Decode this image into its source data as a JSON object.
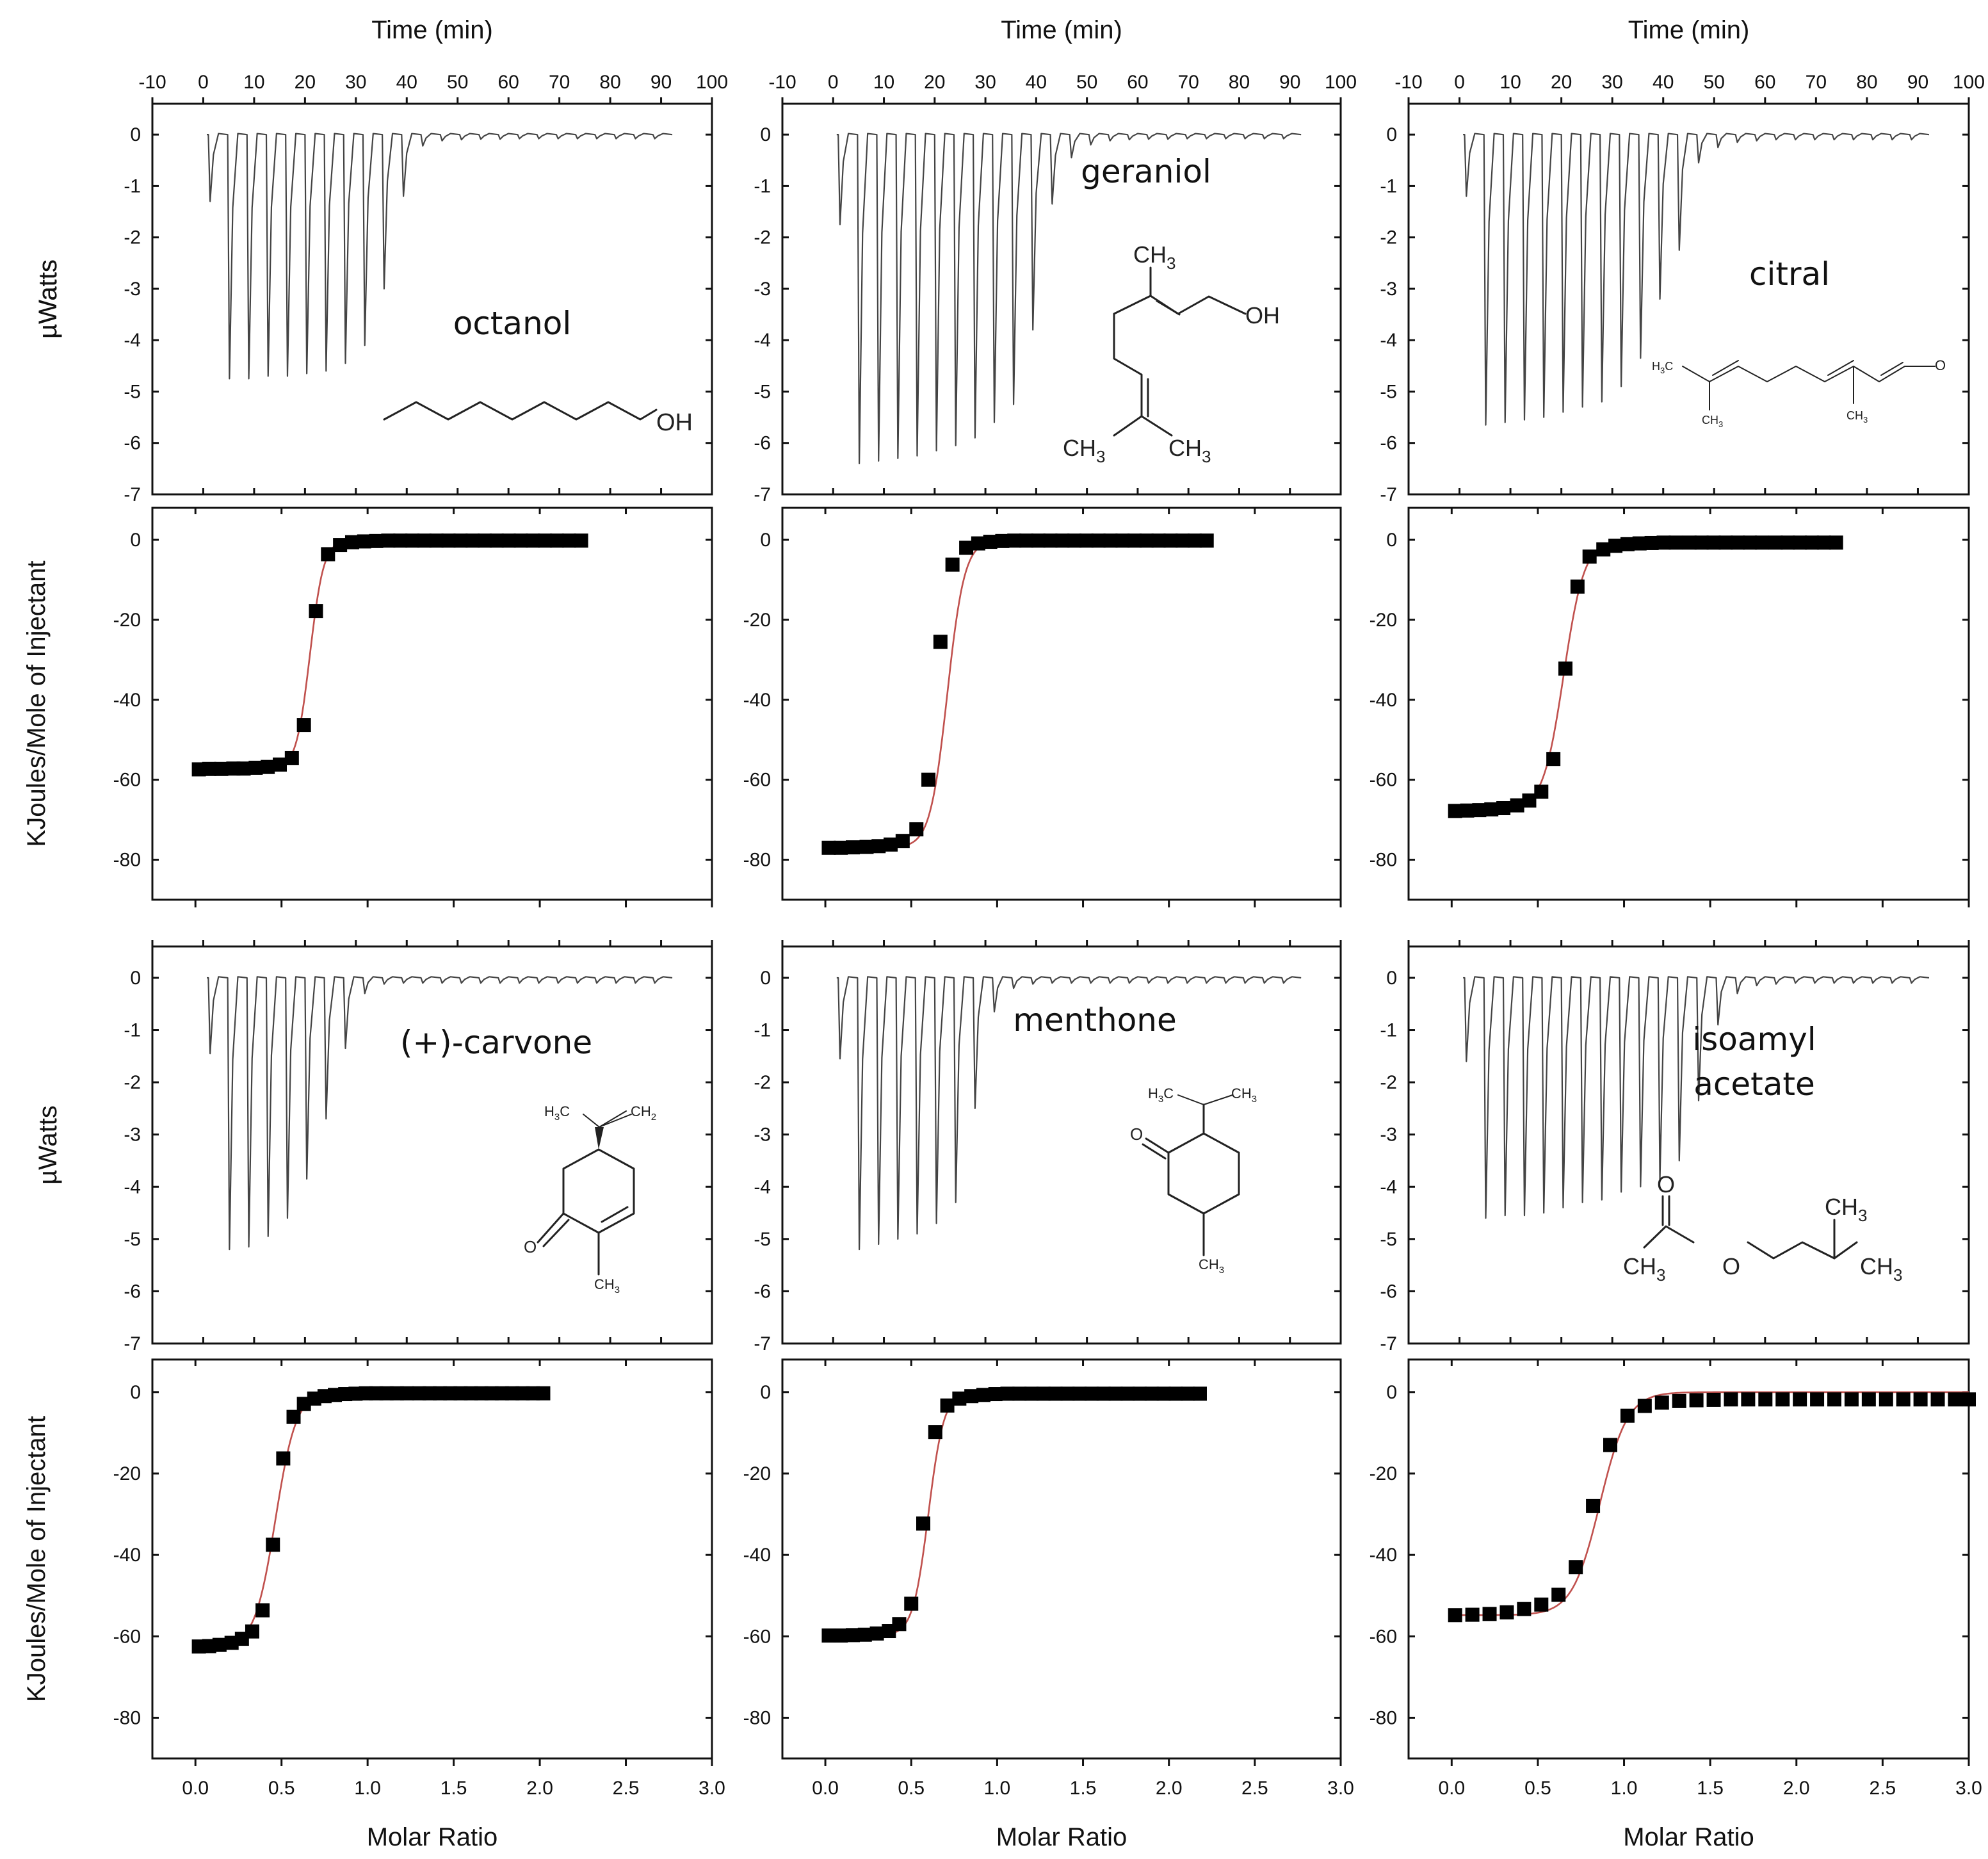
{
  "chart_data": [
    {
      "type": "itc-titration",
      "compound": "octanol",
      "thermogram": {
        "title": "Time (min)",
        "ylabel": "µWatts",
        "xlim": [
          -10,
          100
        ],
        "ylim": [
          -7,
          0.6
        ],
        "xticks": [
          -10,
          0,
          10,
          20,
          30,
          40,
          50,
          60,
          70,
          80,
          90,
          100
        ],
        "yticks": [
          0,
          -1,
          -2,
          -3,
          -4,
          -5,
          -6,
          -7
        ],
        "injection_interval_min": 3.8,
        "first_injection_min": 1.0,
        "peak_minima": [
          -1.3,
          -4.75,
          -4.75,
          -4.7,
          -4.7,
          -4.65,
          -4.6,
          -4.45,
          -4.1,
          -3.0,
          -1.2,
          -0.22,
          -0.12,
          -0.1,
          -0.09,
          -0.09,
          -0.08,
          -0.08,
          -0.08,
          -0.08,
          -0.08,
          -0.08,
          -0.08,
          -0.08
        ]
      },
      "isotherm": {
        "xlabel": "Molar Ratio",
        "ylabel": "KJoules/Mole of Injectant",
        "xlim": [
          -0.25,
          3.0
        ],
        "ylim": [
          -90,
          8
        ],
        "xticks": [
          0.0,
          0.5,
          1.0,
          1.5,
          2.0,
          2.5,
          3.0
        ],
        "yticks": [
          0,
          -20,
          -40,
          -60,
          -80
        ],
        "x": [
          0.02,
          0.08,
          0.15,
          0.22,
          0.28,
          0.35,
          0.42,
          0.49,
          0.56,
          0.63,
          0.7,
          0.77,
          0.84,
          0.91,
          0.98,
          1.05,
          1.12,
          1.19,
          1.26,
          1.33,
          1.4,
          1.47,
          1.54,
          1.61,
          1.68,
          1.75,
          1.82,
          1.89,
          1.96,
          2.03,
          2.1,
          2.17,
          2.24
        ],
        "y": [
          -57.4,
          -57.3,
          -57.3,
          -57.2,
          -57.2,
          -57.0,
          -56.8,
          -56.2,
          -54.6,
          -46.3,
          -17.8,
          -3.6,
          -1.3,
          -0.6,
          -0.4,
          -0.3,
          -0.2,
          -0.2,
          -0.2,
          -0.2,
          -0.2,
          -0.2,
          -0.2,
          -0.2,
          -0.2,
          -0.2,
          -0.2,
          -0.2,
          -0.2,
          -0.2,
          -0.2,
          -0.2,
          -0.2
        ],
        "fit": {
          "dh": -57.5,
          "x0": 0.665,
          "w": 0.04
        }
      }
    },
    {
      "type": "itc-titration",
      "compound": "geraniol",
      "thermogram": {
        "title": "Time (min)",
        "ylabel": "µWatts",
        "xlim": [
          -10,
          100
        ],
        "ylim": [
          -7,
          0.6
        ],
        "xticks": [
          -10,
          0,
          10,
          20,
          30,
          40,
          50,
          60,
          70,
          80,
          90,
          100
        ],
        "yticks": [
          0,
          -1,
          -2,
          -3,
          -4,
          -5,
          -6,
          -7
        ],
        "injection_interval_min": 3.8,
        "first_injection_min": 1.0,
        "peak_minima": [
          -1.75,
          -6.4,
          -6.35,
          -6.3,
          -6.25,
          -6.15,
          -6.05,
          -5.9,
          -5.6,
          -5.25,
          -3.8,
          -1.35,
          -0.45,
          -0.2,
          -0.12,
          -0.1,
          -0.09,
          -0.09,
          -0.08,
          -0.08,
          -0.08,
          -0.08,
          -0.08,
          -0.08
        ]
      },
      "isotherm": {
        "xlabel": "Molar Ratio",
        "ylabel": "",
        "xlim": [
          -0.25,
          3.0
        ],
        "ylim": [
          -90,
          8
        ],
        "xticks": [
          0.0,
          0.5,
          1.0,
          1.5,
          2.0,
          2.5,
          3.0
        ],
        "yticks": [
          0,
          -20,
          -40,
          -60,
          -80
        ],
        "x": [
          0.02,
          0.09,
          0.16,
          0.24,
          0.31,
          0.38,
          0.45,
          0.53,
          0.6,
          0.67,
          0.74,
          0.82,
          0.89,
          0.96,
          1.03,
          1.1,
          1.17,
          1.24,
          1.31,
          1.38,
          1.45,
          1.52,
          1.59,
          1.66,
          1.73,
          1.8,
          1.87,
          1.94,
          2.01,
          2.08,
          2.15,
          2.22
        ],
        "y": [
          -77.0,
          -77.0,
          -76.9,
          -76.8,
          -76.6,
          -76.2,
          -75.3,
          -72.4,
          -60.0,
          -25.5,
          -6.2,
          -2.0,
          -0.9,
          -0.5,
          -0.3,
          -0.2,
          -0.2,
          -0.2,
          -0.2,
          -0.2,
          -0.2,
          -0.2,
          -0.2,
          -0.2,
          -0.2,
          -0.2,
          -0.2,
          -0.2,
          -0.2,
          -0.2,
          -0.2,
          -0.2
        ],
        "fit": {
          "dh": -77.0,
          "x0": 0.71,
          "w": 0.05
        }
      }
    },
    {
      "type": "itc-titration",
      "compound": "citral",
      "thermogram": {
        "title": "Time (min)",
        "ylabel": "",
        "xlim": [
          -10,
          100
        ],
        "ylim": [
          -7,
          0.6
        ],
        "xticks": [
          -10,
          0,
          10,
          20,
          30,
          40,
          50,
          60,
          70,
          80,
          90,
          100
        ],
        "yticks": [
          0,
          -1,
          -2,
          -3,
          -4,
          -5,
          -6,
          -7
        ],
        "injection_interval_min": 3.8,
        "first_injection_min": 1.0,
        "peak_minima": [
          -1.2,
          -5.65,
          -5.6,
          -5.55,
          -5.5,
          -5.4,
          -5.3,
          -5.2,
          -4.9,
          -4.35,
          -3.2,
          -2.25,
          -0.55,
          -0.25,
          -0.15,
          -0.12,
          -0.1,
          -0.1,
          -0.1,
          -0.1,
          -0.1,
          -0.1,
          -0.1,
          -0.1
        ]
      },
      "isotherm": {
        "xlabel": "Molar Ratio",
        "ylabel": "",
        "xlim": [
          -0.25,
          3.0
        ],
        "ylim": [
          -90,
          8
        ],
        "xticks": [
          0.0,
          0.5,
          1.0,
          1.5,
          2.0,
          2.5,
          3.0
        ],
        "yticks": [
          0,
          -20,
          -40,
          -60,
          -80
        ],
        "x": [
          0.02,
          0.09,
          0.16,
          0.23,
          0.3,
          0.38,
          0.45,
          0.52,
          0.59,
          0.66,
          0.73,
          0.8,
          0.88,
          0.95,
          1.02,
          1.09,
          1.16,
          1.23,
          1.3,
          1.38,
          1.45,
          1.52,
          1.59,
          1.66,
          1.73,
          1.8,
          1.88,
          1.95,
          2.02,
          2.09,
          2.16,
          2.23
        ],
        "y": [
          -67.8,
          -67.7,
          -67.6,
          -67.4,
          -67.1,
          -66.4,
          -65.2,
          -63.0,
          -54.8,
          -32.2,
          -11.7,
          -4.2,
          -2.4,
          -1.5,
          -1.1,
          -0.9,
          -0.8,
          -0.7,
          -0.7,
          -0.7,
          -0.7,
          -0.7,
          -0.7,
          -0.7,
          -0.7,
          -0.7,
          -0.7,
          -0.7,
          -0.7,
          -0.7,
          -0.7,
          -0.7
        ],
        "fit": {
          "dh": -67.5,
          "x0": 0.65,
          "w": 0.06
        }
      }
    },
    {
      "type": "itc-titration",
      "compound": "(+)-carvone",
      "thermogram": {
        "title": "",
        "ylabel": "µWatts",
        "xlim": [
          -10,
          100
        ],
        "ylim": [
          -7,
          0.6
        ],
        "xticks": [],
        "yticks": [
          0,
          -1,
          -2,
          -3,
          -4,
          -5,
          -6,
          -7
        ],
        "injection_interval_min": 3.8,
        "first_injection_min": 1.0,
        "peak_minima": [
          -1.45,
          -5.2,
          -5.15,
          -4.95,
          -4.6,
          -3.85,
          -2.7,
          -1.35,
          -0.3,
          -0.12,
          -0.1,
          -0.1,
          -0.1,
          -0.1,
          -0.1,
          -0.1,
          -0.1,
          -0.1,
          -0.1,
          -0.1,
          -0.1,
          -0.1,
          -0.1,
          -0.1
        ]
      },
      "isotherm": {
        "xlabel": "Molar Ratio",
        "ylabel": "KJoules/Mole of Injectant",
        "xlim": [
          -0.25,
          3.0
        ],
        "ylim": [
          -90,
          8
        ],
        "xticks": [
          0.0,
          0.5,
          1.0,
          1.5,
          2.0,
          2.5,
          3.0
        ],
        "yticks": [
          0,
          -20,
          -40,
          -60,
          -80
        ],
        "x": [
          0.02,
          0.08,
          0.14,
          0.21,
          0.27,
          0.33,
          0.39,
          0.45,
          0.51,
          0.57,
          0.63,
          0.69,
          0.75,
          0.81,
          0.87,
          0.93,
          0.99,
          1.05,
          1.11,
          1.17,
          1.23,
          1.3,
          1.36,
          1.42,
          1.48,
          1.54,
          1.6,
          1.66,
          1.72,
          1.78,
          1.84,
          1.9,
          1.96,
          2.02
        ],
        "y": [
          -62.5,
          -62.4,
          -62.1,
          -61.6,
          -60.6,
          -58.8,
          -53.6,
          -37.5,
          -16.3,
          -6.1,
          -2.9,
          -1.6,
          -1.0,
          -0.7,
          -0.5,
          -0.4,
          -0.3,
          -0.3,
          -0.3,
          -0.3,
          -0.3,
          -0.3,
          -0.3,
          -0.3,
          -0.3,
          -0.3,
          -0.3,
          -0.3,
          -0.3,
          -0.3,
          -0.3,
          -0.3,
          -0.3,
          -0.3
        ],
        "fit": {
          "dh": -62.5,
          "x0": 0.465,
          "w": 0.06
        }
      }
    },
    {
      "type": "itc-titration",
      "compound": "menthone",
      "thermogram": {
        "title": "",
        "ylabel": "",
        "xlim": [
          -10,
          100
        ],
        "ylim": [
          -7,
          0.6
        ],
        "xticks": [],
        "yticks": [
          0,
          -1,
          -2,
          -3,
          -4,
          -5,
          -6,
          -7
        ],
        "injection_interval_min": 3.8,
        "first_injection_min": 1.0,
        "peak_minima": [
          -1.55,
          -5.2,
          -5.1,
          -5.0,
          -4.9,
          -4.7,
          -4.3,
          -2.5,
          -0.65,
          -0.2,
          -0.12,
          -0.1,
          -0.1,
          -0.1,
          -0.1,
          -0.1,
          -0.1,
          -0.1,
          -0.1,
          -0.1,
          -0.1,
          -0.1,
          -0.1,
          -0.1
        ]
      },
      "isotherm": {
        "xlabel": "Molar Ratio",
        "ylabel": "",
        "xlim": [
          -0.25,
          3.0
        ],
        "ylim": [
          -90,
          8
        ],
        "xticks": [
          0.0,
          0.5,
          1.0,
          1.5,
          2.0,
          2.5,
          3.0
        ],
        "yticks": [
          0,
          -20,
          -40,
          -60,
          -80
        ],
        "x": [
          0.02,
          0.09,
          0.16,
          0.23,
          0.3,
          0.37,
          0.43,
          0.5,
          0.57,
          0.64,
          0.71,
          0.78,
          0.85,
          0.92,
          0.99,
          1.06,
          1.13,
          1.2,
          1.27,
          1.34,
          1.41,
          1.48,
          1.55,
          1.62,
          1.69,
          1.76,
          1.83,
          1.9,
          1.97,
          2.04,
          2.11,
          2.18
        ],
        "y": [
          -59.8,
          -59.8,
          -59.7,
          -59.6,
          -59.3,
          -58.7,
          -57.0,
          -52.0,
          -32.3,
          -9.8,
          -3.3,
          -1.6,
          -1.0,
          -0.7,
          -0.5,
          -0.4,
          -0.4,
          -0.4,
          -0.4,
          -0.4,
          -0.4,
          -0.4,
          -0.4,
          -0.4,
          -0.4,
          -0.4,
          -0.4,
          -0.4,
          -0.4,
          -0.4,
          -0.4,
          -0.4
        ],
        "fit": {
          "dh": -59.8,
          "x0": 0.6,
          "w": 0.045
        }
      }
    },
    {
      "type": "itc-titration",
      "compound": "isoamyl acetate",
      "thermogram": {
        "title": "",
        "ylabel": "",
        "xlim": [
          -10,
          100
        ],
        "ylim": [
          -7,
          0.6
        ],
        "xticks": [],
        "yticks": [
          0,
          -1,
          -2,
          -3,
          -4,
          -5,
          -6,
          -7
        ],
        "injection_interval_min": 3.8,
        "first_injection_min": 1.0,
        "peak_minima": [
          -1.6,
          -4.6,
          -4.55,
          -4.55,
          -4.5,
          -4.4,
          -4.3,
          -4.25,
          -4.1,
          -4.0,
          -3.85,
          -3.5,
          -2.35,
          -0.9,
          -0.3,
          -0.15,
          -0.12,
          -0.1,
          -0.1,
          -0.1,
          -0.1,
          -0.1,
          -0.1,
          -0.1
        ]
      },
      "isotherm": {
        "xlabel": "Molar Ratio",
        "ylabel": "",
        "xlim": [
          -0.25,
          3.0
        ],
        "ylim": [
          -90,
          8
        ],
        "xticks": [
          0.0,
          0.5,
          1.0,
          1.5,
          2.0,
          2.5,
          3.0
        ],
        "yticks": [
          0,
          -20,
          -40,
          -60,
          -80
        ],
        "x": [
          0.02,
          0.12,
          0.22,
          0.32,
          0.42,
          0.52,
          0.62,
          0.72,
          0.82,
          0.92,
          1.02,
          1.12,
          1.22,
          1.32,
          1.42,
          1.52,
          1.62,
          1.72,
          1.82,
          1.92,
          2.02,
          2.12,
          2.22,
          2.32,
          2.42,
          2.52,
          2.62,
          2.72,
          2.82,
          2.92,
          3.0
        ],
        "y": [
          -54.8,
          -54.7,
          -54.5,
          -54.1,
          -53.3,
          -52.2,
          -49.8,
          -43.0,
          -28.0,
          -13.0,
          -5.8,
          -3.4,
          -2.6,
          -2.2,
          -2.0,
          -1.9,
          -1.8,
          -1.8,
          -1.8,
          -1.8,
          -1.8,
          -1.8,
          -1.8,
          -1.8,
          -1.8,
          -1.8,
          -1.8,
          -1.8,
          -1.8,
          -1.8,
          -1.8
        ],
        "fit": {
          "dh": -54.8,
          "x0": 0.86,
          "w": 0.08
        }
      }
    }
  ],
  "labels": {
    "octanol": "octanol",
    "geraniol": "geraniol",
    "citral": "citral",
    "carvone": "(+)-carvone",
    "menthone": "menthone",
    "isoamyl_line1": "isoamyl",
    "isoamyl_line2": "acetate"
  },
  "molecules": {
    "oh": "OH",
    "ch3": "CH",
    "ch2": "CH",
    "h3c": "H",
    "c": "C",
    "o": "O",
    "sub3": "3",
    "sub2": "2"
  }
}
